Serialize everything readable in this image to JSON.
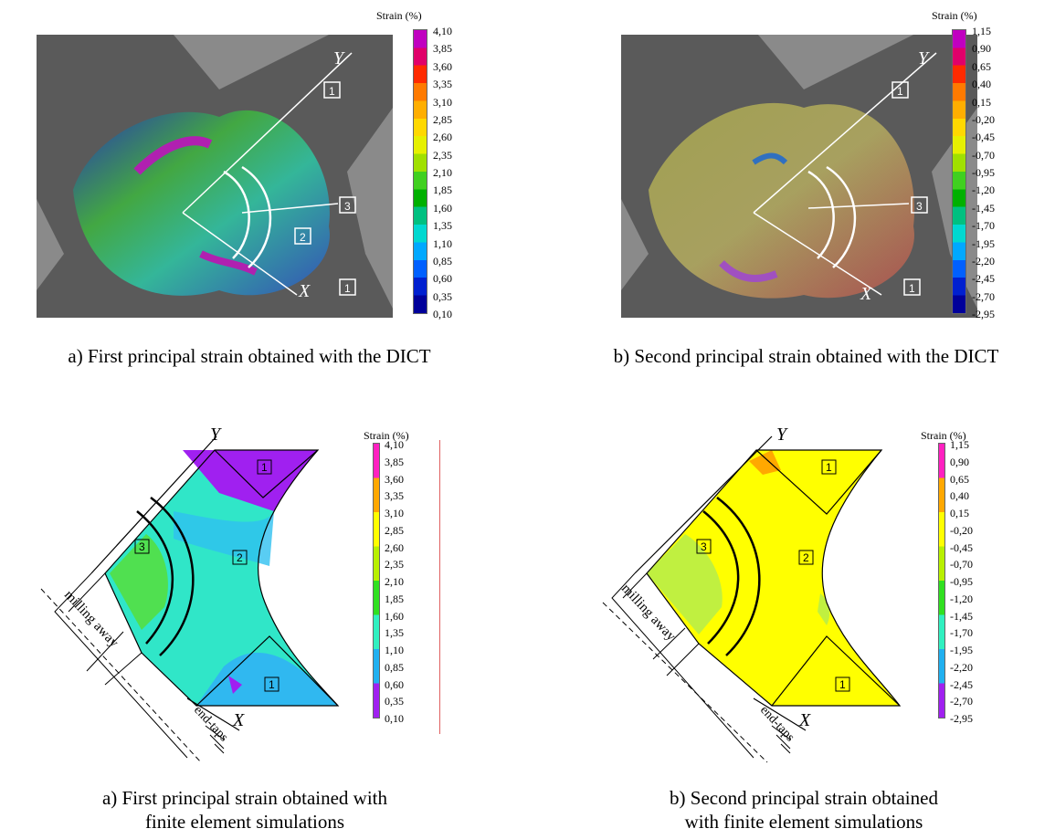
{
  "legend_title": "Strain (%)",
  "legend_a_values": [
    "4,10",
    "3,85",
    "3,60",
    "3,35",
    "3,10",
    "2,85",
    "2,60",
    "2,35",
    "2,10",
    "1,85",
    "1,60",
    "1,35",
    "1,10",
    "0,85",
    "0,60",
    "0,35",
    "0,10"
  ],
  "legend_b_values": [
    "1,15",
    "0,90",
    "0,65",
    "0,40",
    "0,15",
    "-0,20",
    "-0,45",
    "-0,70",
    "-0,95",
    "-1,20",
    "-1,45",
    "-1,70",
    "-1,95",
    "-2,20",
    "-2,45",
    "-2,70",
    "-2,95"
  ],
  "axis_labels": {
    "y": "Y",
    "x": "X"
  },
  "region_labels": [
    "1",
    "2",
    "3"
  ],
  "fe_annotations": {
    "milling": "milling away",
    "end_taps": "end-taps"
  },
  "captions": {
    "a_dict": "a) First principal strain obtained with the DICT",
    "b_dict": "b) Second principal strain obtained with the DICT",
    "a_fe_line1": "a) First principal strain obtained with",
    "a_fe_line2": "finite element simulations",
    "b_fe_line1": "b) Second principal strain obtained",
    "b_fe_line2": "with finite element simulations"
  },
  "colors": {
    "dict_bar": [
      "#c000c0",
      "#e0006a",
      "#ff2a00",
      "#ff7a00",
      "#ffae00",
      "#ffd800",
      "#e6f000",
      "#a0e000",
      "#40d020",
      "#00b000",
      "#00c080",
      "#00d8d0",
      "#00a8ff",
      "#0060ff",
      "#0020d0",
      "#00009a"
    ],
    "fe_bar": [
      "#ff20c0",
      "#ff20c0",
      "#ffa800",
      "#ffa800",
      "#ffff00",
      "#ffff00",
      "#b8f000",
      "#b8f000",
      "#30e020",
      "#30e020",
      "#30f0c0",
      "#30f0c0",
      "#20b0f0",
      "#20b0f0",
      "#a020f0",
      "#a020f0"
    ]
  }
}
